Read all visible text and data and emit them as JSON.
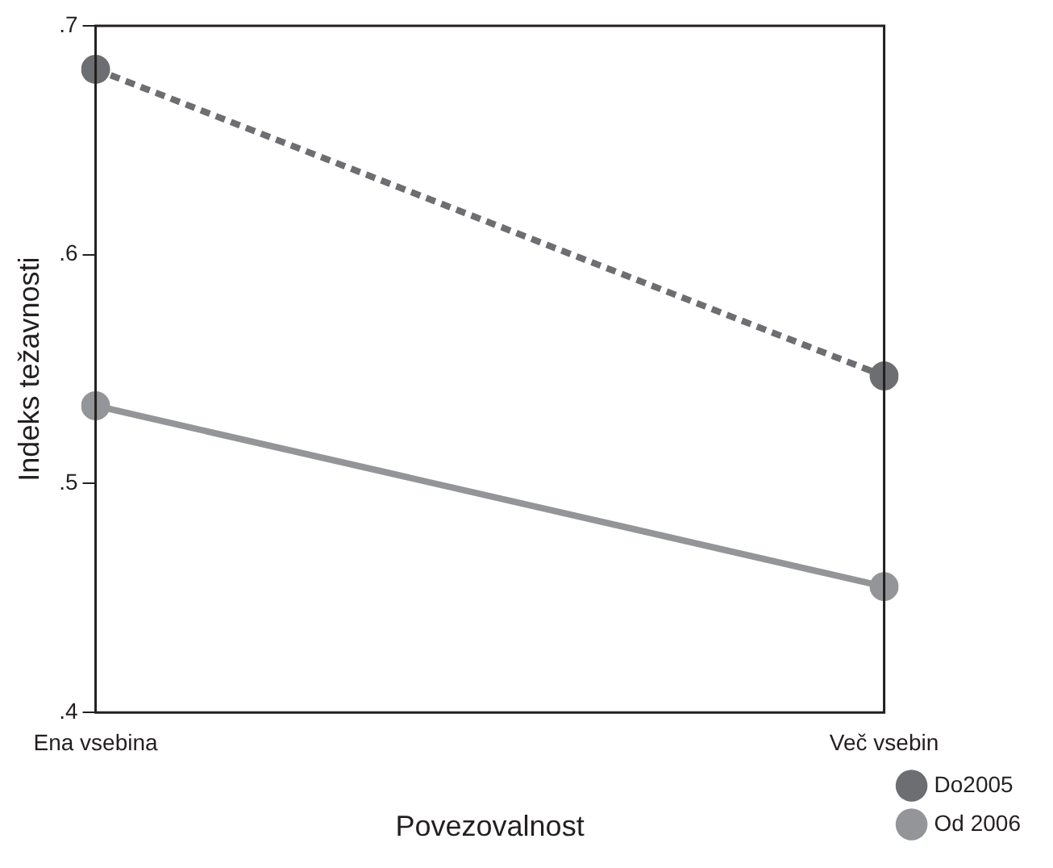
{
  "chart_data": {
    "type": "line",
    "xlabel": "Povezovalnost",
    "ylabel": "Indeks težavnosti",
    "categories": [
      "Ena vsebina",
      "Več vsebin"
    ],
    "series": [
      {
        "name": "Do2005",
        "color": "#6d6e71",
        "values": [
          0.681,
          0.547
        ],
        "line_style": "dashed"
      },
      {
        "name": "Od 2006",
        "color": "#939598",
        "values": [
          0.534,
          0.455
        ],
        "line_style": "solid"
      }
    ],
    "ylim": [
      0.4,
      0.7
    ],
    "yticks": [
      {
        "value": 0.4,
        "label": ".4"
      },
      {
        "value": 0.5,
        "label": ".5"
      },
      {
        "value": 0.6,
        "label": ".6"
      },
      {
        "value": 0.7,
        "label": ".7"
      }
    ],
    "marker": "circle",
    "legend": "bottom right",
    "grid": false
  }
}
